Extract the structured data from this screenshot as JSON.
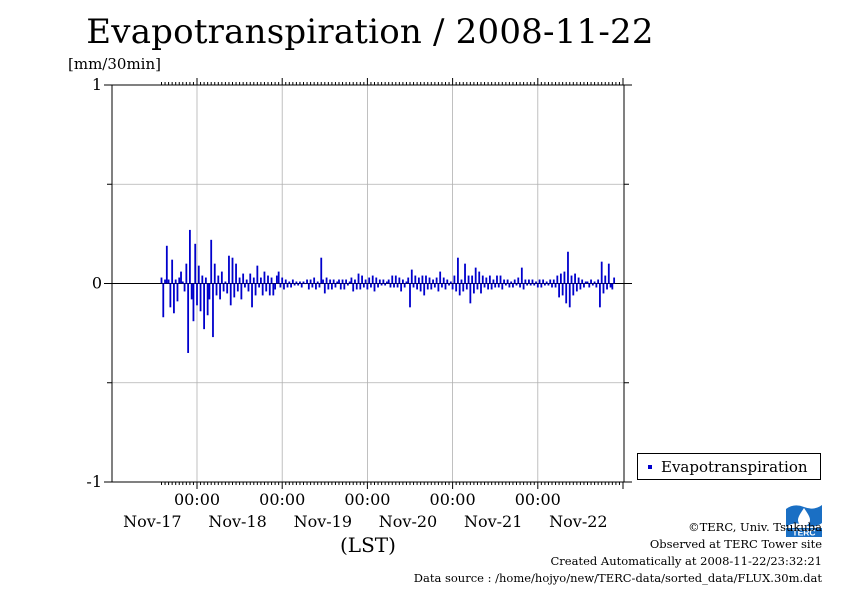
{
  "chart_data": {
    "type": "bar",
    "title": "Evapotranspiration / 2008-11-22",
    "ylabel": "[mm/30min]",
    "xlabel": "(LST)",
    "ylim": [
      -1,
      1
    ],
    "y_ticks": [
      "1",
      "0",
      "-1"
    ],
    "x_tick_labels": [
      "00:00",
      "00:00",
      "00:00",
      "00:00",
      "00:00"
    ],
    "x_date_labels": [
      "Nov-17",
      "Nov-18",
      "Nov-19",
      "Nov-20",
      "Nov-21",
      "Nov-22"
    ],
    "x_start": "2008-11-16 14:00",
    "interval_minutes": 30,
    "grid": true,
    "legend_position": "lower-right, outside",
    "series": [
      {
        "name": "Evapotranspiration",
        "color": "#0000cc",
        "values": [
          0.03,
          -0.17,
          0.02,
          0.19,
          0.02,
          -0.12,
          0.12,
          -0.15,
          0.02,
          -0.09,
          0.03,
          0.06,
          0.01,
          -0.04,
          0.1,
          -0.35,
          0.27,
          -0.08,
          -0.19,
          0.2,
          -0.11,
          0.09,
          -0.14,
          0.04,
          -0.23,
          0.03,
          -0.16,
          -0.08,
          0.22,
          -0.27,
          0.1,
          -0.06,
          0.04,
          -0.08,
          0.06,
          -0.04,
          0.01,
          -0.05,
          0.14,
          -0.11,
          0.13,
          -0.07,
          0.1,
          -0.04,
          0.03,
          -0.08,
          0.05,
          -0.02,
          0.02,
          -0.04,
          0.05,
          -0.12,
          0.03,
          -0.06,
          0.09,
          -0.02,
          0.03,
          -0.06,
          0.06,
          -0.04,
          0.04,
          -0.06,
          0.03,
          -0.06,
          -0.03,
          0.04,
          0.06,
          -0.02,
          0.03,
          -0.03,
          0.02,
          -0.02,
          0.01,
          -0.02,
          0.02,
          -0.01,
          0.01,
          -0.01,
          0.01,
          -0.02,
          0.01,
          0.0,
          0.02,
          -0.03,
          0.02,
          -0.02,
          0.03,
          -0.03,
          0.01,
          -0.02,
          0.13,
          0.02,
          -0.05,
          0.03,
          -0.03,
          0.02,
          -0.03,
          0.02,
          -0.02,
          0.01,
          0.02,
          -0.03,
          0.02,
          -0.03,
          0.02,
          -0.01,
          0.01,
          0.03,
          -0.04,
          0.02,
          -0.03,
          0.05,
          -0.03,
          0.04,
          -0.02,
          0.02,
          -0.03,
          0.03,
          -0.02,
          0.04,
          -0.04,
          0.03,
          -0.02,
          0.02,
          -0.01,
          0.02,
          -0.01,
          0.01,
          0.02,
          -0.02,
          0.04,
          -0.02,
          0.04,
          -0.02,
          0.03,
          -0.04,
          0.02,
          -0.02,
          0.01,
          0.03,
          -0.12,
          0.07,
          -0.02,
          0.04,
          -0.03,
          0.03,
          -0.04,
          0.04,
          -0.06,
          0.04,
          -0.03,
          0.03,
          -0.03,
          0.02,
          -0.02,
          0.03,
          -0.04,
          0.06,
          -0.02,
          0.03,
          -0.03,
          0.02,
          -0.01,
          0.01,
          -0.03,
          0.04,
          -0.04,
          0.13,
          -0.06,
          0.02,
          -0.04,
          0.1,
          -0.03,
          0.04,
          -0.1,
          0.04,
          -0.05,
          0.08,
          -0.03,
          0.06,
          -0.05,
          0.04,
          -0.02,
          0.03,
          -0.03,
          0.04,
          -0.03,
          0.02,
          -0.02,
          0.04,
          -0.02,
          0.04,
          -0.03,
          0.02,
          -0.01,
          0.02,
          -0.02,
          0.01,
          -0.02,
          0.02,
          -0.01,
          0.03,
          -0.02,
          0.08,
          -0.03,
          0.02,
          -0.01,
          0.02,
          -0.01,
          0.02,
          -0.01,
          0.01,
          -0.02,
          0.02,
          -0.02,
          0.02,
          -0.01,
          0.01,
          -0.01,
          0.02,
          -0.02,
          0.02,
          -0.02,
          0.04,
          -0.07,
          0.05,
          -0.06,
          0.06,
          -0.1,
          0.16,
          -0.12,
          0.04,
          -0.06,
          0.05,
          -0.04,
          0.03,
          -0.03,
          0.02,
          -0.02,
          0.01,
          0.01,
          -0.02,
          0.02,
          -0.01,
          0.01,
          -0.02,
          0.02,
          -0.12,
          0.11,
          -0.05,
          0.04,
          -0.03,
          0.1,
          -0.02,
          -0.03,
          0.03
        ]
      }
    ]
  },
  "legend": {
    "label": "Evapotranspiration"
  },
  "credits": {
    "copyright": "©TERC, Univ. Tsukuba",
    "observed": "Observed at TERC Tower site",
    "created": "Created Automatically at 2008-11-22/23:32:21",
    "source": "Data source : /home/hojyo/new/TERC-data/sorted_data/FLUX.30m.dat"
  },
  "logo": {
    "text": "TERC",
    "color": "#1a6fc4"
  }
}
